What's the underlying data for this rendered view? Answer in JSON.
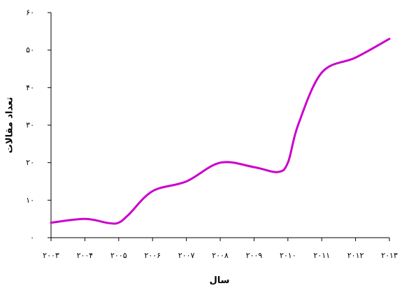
{
  "chart_data": {
    "type": "line",
    "title": "",
    "xlabel": "سال",
    "ylabel": "تعداد مقالات",
    "x": [
      2003,
      2004,
      2005,
      2006,
      2007,
      2008,
      2009,
      2010,
      2011,
      2012,
      2013
    ],
    "x_tick_labels": [
      "۲۰۰۳",
      "۲۰۰۴",
      "۲۰۰۵",
      "۲۰۰۶",
      "۲۰۰۷",
      "۲۰۰۸",
      "۲۰۰۹",
      "۲۰۱۰",
      "۲۰۱۱",
      "۲۰۱۲",
      "۲۰۱۳"
    ],
    "y_ticks": [
      0,
      10,
      20,
      30,
      40,
      50,
      60
    ],
    "y_tick_labels": [
      "۰",
      "۱۰",
      "۲۰",
      "۳۰",
      "۴۰",
      "۵۰",
      "۶۰"
    ],
    "ylim": [
      0,
      60
    ],
    "grid": false,
    "legend": "none",
    "series": [
      {
        "x": [
          2003,
          2004,
          2004.7,
          2005,
          2005.3,
          2006,
          2007,
          2008,
          2009,
          2009.7,
          2010,
          2010.3,
          2011,
          2012,
          2013
        ],
        "values": [
          4,
          5,
          3.9,
          4,
          6.2,
          12.4,
          15,
          20,
          18.8,
          17.5,
          20,
          30,
          44,
          48,
          53
        ],
        "color": "#cc00cc"
      }
    ]
  }
}
